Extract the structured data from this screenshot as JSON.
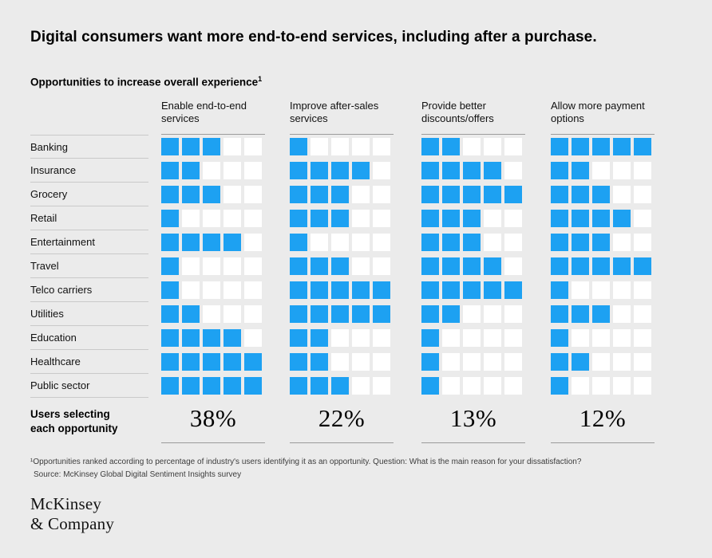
{
  "page": {
    "title": "Digital consumers want more end-to-end services, including after a purchase.",
    "subtitle": "Opportunities to increase overall experience",
    "subtitle_superscript": "1",
    "footnote_line1": "¹Opportunities ranked according to percentage of industry's users identifying it as an opportunity. Question: What is the main reason for your dissatisfaction?",
    "footnote_line2": "Source: McKinsey Global Digital Sentiment Insights survey",
    "logo_line1": "McKinsey",
    "logo_line2": "& Company",
    "colors": {
      "background": "#ebebeb"
    }
  },
  "chart_data": {
    "type": "heatmap",
    "title": "Opportunities to increase overall experience",
    "subtitle_note": "Filled squares out of 5 indicate how strongly each industry's users identify the opportunity",
    "categories": [
      "Banking",
      "Insurance",
      "Grocery",
      "Retail",
      "Entertainment",
      "Travel",
      "Telco carriers",
      "Utilities",
      "Education",
      "Healthcare",
      "Public sector"
    ],
    "max_squares": 5,
    "series": [
      {
        "name": "Enable end-to-end services",
        "values": [
          3,
          2,
          3,
          1,
          4,
          1,
          1,
          2,
          4,
          5,
          5
        ],
        "users_selecting": "38%"
      },
      {
        "name": "Improve after-sales services",
        "values": [
          1,
          4,
          3,
          3,
          1,
          3,
          5,
          5,
          2,
          2,
          3
        ],
        "users_selecting": "22%"
      },
      {
        "name": "Provide better discounts/offers",
        "values": [
          2,
          4,
          5,
          3,
          3,
          4,
          5,
          2,
          1,
          1,
          1
        ],
        "users_selecting": "13%"
      },
      {
        "name": "Allow more payment options",
        "values": [
          5,
          2,
          3,
          4,
          3,
          5,
          1,
          3,
          1,
          2,
          1
        ],
        "users_selecting": "12%"
      }
    ],
    "footer_label": "Users selecting each opportunity",
    "colors": {
      "filled": "#1da1f2",
      "empty": "#ffffff"
    },
    "legend_position": "none",
    "grid": false
  }
}
